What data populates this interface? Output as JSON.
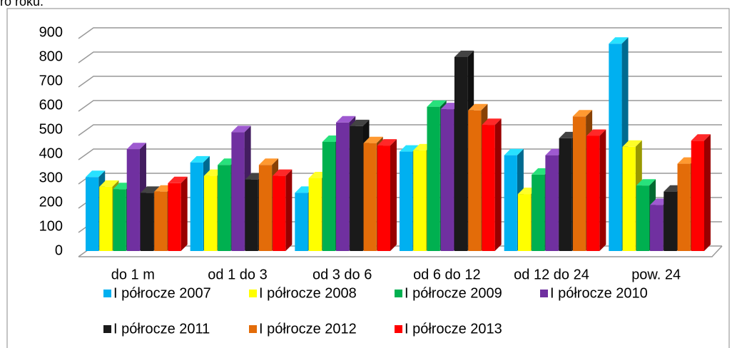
{
  "page_fragment": "ro roku.",
  "chart_data": {
    "type": "bar3d",
    "categories": [
      "do 1 m",
      "od 1 do 3",
      "od 3 do 6",
      "od 6 do 12",
      "od 12 do 24",
      "pow. 24"
    ],
    "series": [
      {
        "name": "I półrocze 2007",
        "color": "#00b0f0",
        "values": [
          305,
          365,
          240,
          410,
          395,
          855
        ]
      },
      {
        "name": "I półrocze 2008",
        "color": "#ffff00",
        "values": [
          265,
          310,
          300,
          415,
          235,
          430
        ]
      },
      {
        "name": "I półrocze 2009",
        "color": "#00b050",
        "values": [
          255,
          355,
          450,
          595,
          315,
          270
        ]
      },
      {
        "name": "I półrocze 2010",
        "color": "#7030a0",
        "values": [
          420,
          490,
          530,
          585,
          395,
          190
        ]
      },
      {
        "name": "I półrocze 2011",
        "color": "#1a1a1a",
        "values": [
          240,
          295,
          515,
          800,
          465,
          245
        ]
      },
      {
        "name": "I półrocze 2012",
        "color": "#e36c09",
        "values": [
          245,
          355,
          445,
          580,
          555,
          360
        ]
      },
      {
        "name": "I półrocze 2013",
        "color": "#ff0000",
        "values": [
          280,
          310,
          435,
          520,
          475,
          455
        ]
      }
    ],
    "ylim": [
      0,
      900
    ],
    "yticks": [
      0,
      100,
      200,
      300,
      400,
      500,
      600,
      700,
      800,
      900
    ],
    "grid": true
  }
}
